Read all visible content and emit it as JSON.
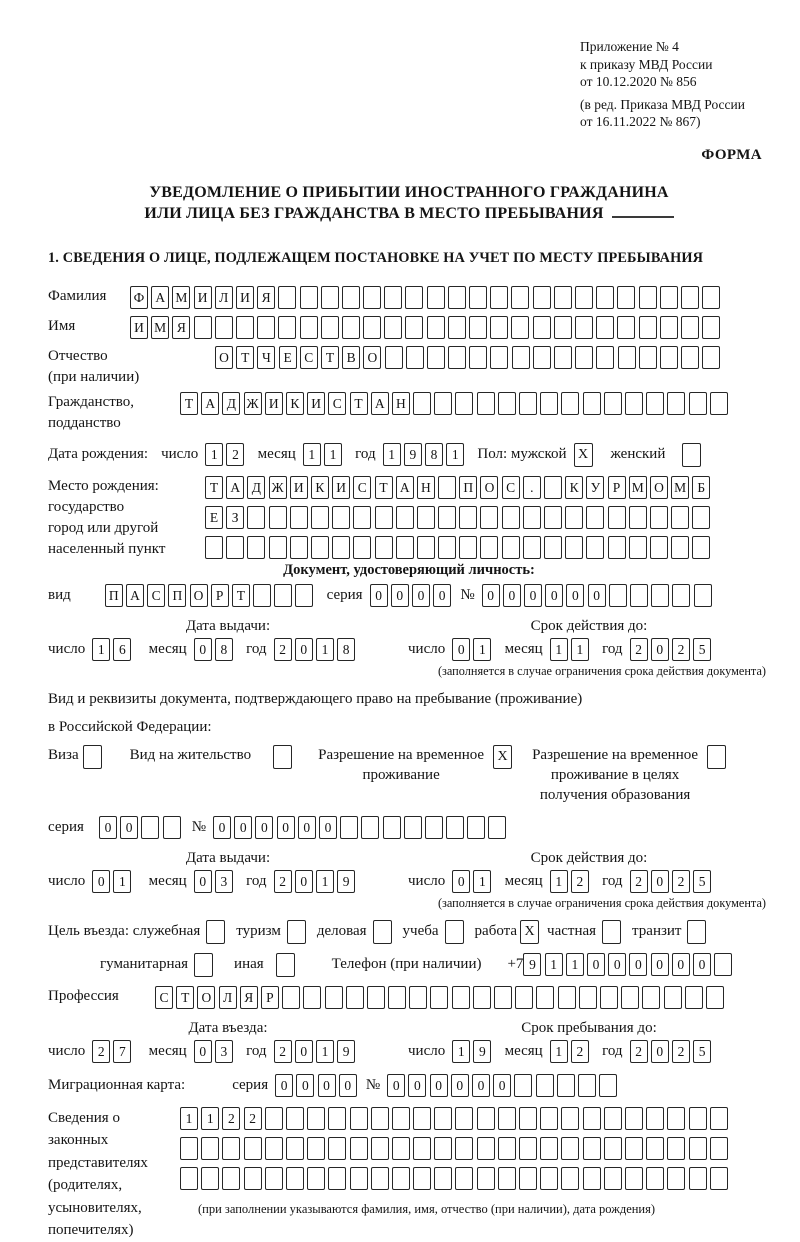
{
  "header": {
    "annex_line1": "Приложение № 4",
    "annex_line2": "к приказу МВД России",
    "annex_line3": "от 10.12.2020 № 856",
    "revision_line1": "(в ред. Приказа МВД России",
    "revision_line2": "от 16.11.2022 № 867)",
    "form_label": "ФОРМА"
  },
  "title": {
    "line1": "УВЕДОМЛЕНИЕ О ПРИБЫТИИ ИНОСТРАННОГО ГРАЖДАНИНА",
    "line2": "ИЛИ ЛИЦА БЕЗ ГРАЖДАНСТВА В МЕСТО ПРЕБЫВАНИЯ"
  },
  "section1_heading": "1. СВЕДЕНИЯ О ЛИЦЕ, ПОДЛЕЖАЩЕМ ПОСТАНОВКЕ НА УЧЕТ ПО МЕСТУ ПРЕБЫВАНИЯ",
  "labels": {
    "surname": "Фамилия",
    "given_name": "Имя",
    "patronymic": "Отчество",
    "patronymic_note": "(при наличии)",
    "citizenship_1": "Гражданство,",
    "citizenship_2": "подданство",
    "birth_date": "Дата рождения:",
    "day": "число",
    "month": "месяц",
    "year": "год",
    "gender": "Пол: мужской",
    "female": "женский",
    "birth_place": "Место рождения:",
    "birth_place_state": "государство",
    "birth_place_city_1": "город или другой",
    "birth_place_city_2": "населенный пункт",
    "id_doc_heading": "Документ, удостоверяющий личность:",
    "doc_kind": "вид",
    "series": "серия",
    "number": "№",
    "issue_date": "Дата выдачи:",
    "valid_until": "Срок действия до:",
    "valid_note": "(заполняется в случае ограничения срока действия документа)",
    "permit_intro_1": "Вид и реквизиты документа, подтверждающего право на пребывание (проживание)",
    "permit_intro_2": "в Российской Федерации:",
    "visa": "Виза",
    "residence_permit": "Вид на жительство",
    "temp_permit_1": "Разрешение на временное",
    "temp_permit_2": "проживание",
    "temp_edu_1": "Разрешение на временное",
    "temp_edu_2": "проживание в целях",
    "temp_edu_3": "получения образования",
    "purpose": "Цель въезда: служебная",
    "purpose_tourism": "туризм",
    "purpose_business": "деловая",
    "purpose_study": "учеба",
    "purpose_work": "работа",
    "purpose_private": "частная",
    "purpose_transit": "транзит",
    "purpose_humanitarian": "гуманитарная",
    "purpose_other": "иная",
    "phone": "Телефон (при наличии)",
    "phone_prefix": "+7",
    "profession": "Профессия",
    "entry_date": "Дата въезда:",
    "stay_until": "Срок пребывания до:",
    "migration_card": "Миграционная карта:",
    "rep_1": "Сведения о",
    "rep_2": "законных",
    "rep_3": "представителях",
    "rep_4": "(родителях,",
    "rep_5": "усыновителях,",
    "rep_6": "попечителях)",
    "rep_note": "(при заполнении указываются фамилия, имя, отчество (при наличии), дата рождения)"
  },
  "values": {
    "surname": "ФАМИЛИЯ",
    "given_name": "ИМЯ",
    "patronymic": "ОТЧЕСТВО",
    "citizenship": "ТАДЖИКИСТАН",
    "birth_day": "12",
    "birth_month": "11",
    "birth_year": "1981",
    "male_mark": "X",
    "female_mark": "",
    "birth_place_row1": "ТАДЖИКИСТАН ПОС. КУРМОМБ",
    "birth_place_row2": "ЕЗ",
    "birth_place_row3": "",
    "id_kind": "ПАСПОРТ",
    "id_series": "0000",
    "id_number": "000000",
    "id_issue_day": "16",
    "id_issue_month": "08",
    "id_issue_year": "2018",
    "id_valid_day": "01",
    "id_valid_month": "11",
    "id_valid_year": "2025",
    "visa_mark": "",
    "residence_mark": "",
    "temp_permit_mark": "X",
    "temp_edu_mark": "",
    "permit_series": "00",
    "permit_number": "000000",
    "permit_issue_day": "01",
    "permit_issue_month": "03",
    "permit_issue_year": "2019",
    "permit_valid_day": "01",
    "permit_valid_month": "12",
    "permit_valid_year": "2025",
    "official_mark": "",
    "tourism_mark": "",
    "business_mark": "",
    "study_mark": "",
    "work_mark": "X",
    "private_mark": "",
    "transit_mark": "",
    "humanitarian_mark": "",
    "other_mark": "",
    "phone": "911000000",
    "profession": "СТОЛЯР",
    "entry_day": "27",
    "entry_month": "03",
    "entry_year": "2019",
    "stay_day": "19",
    "stay_month": "12",
    "stay_year": "2025",
    "mc_series": "0000",
    "mc_number": "000000",
    "rep_row1": "1122",
    "rep_row2": "",
    "rep_row3": ""
  }
}
